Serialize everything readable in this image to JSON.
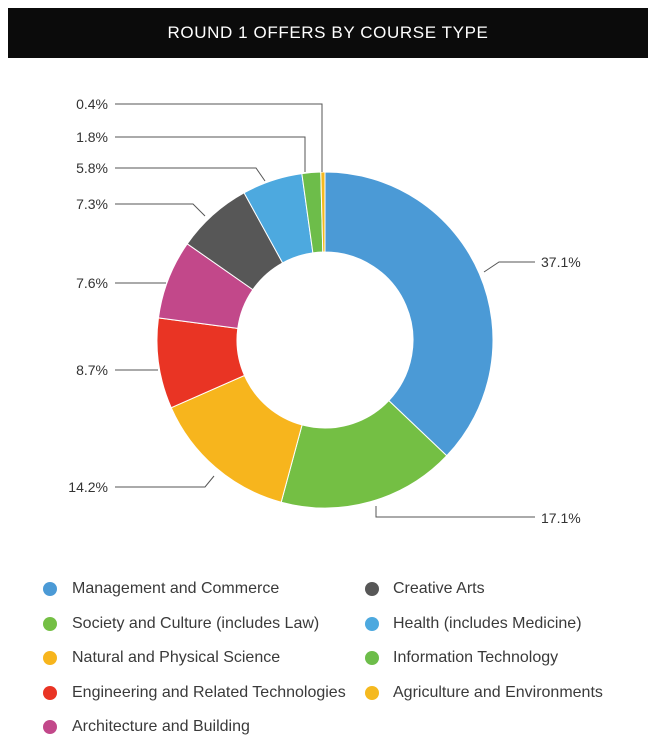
{
  "chart_data": {
    "type": "pie",
    "donut": true,
    "title": "ROUND 1 OFFERS BY COURSE TYPE",
    "categories": [
      "Management and Commerce",
      "Society and Culture (includes Law)",
      "Natural and Physical Science",
      "Engineering and Related Technologies",
      "Architecture and Building",
      "Creative Arts",
      "Health (includes Medicine)",
      "Information Technology",
      "Agriculture and Environments"
    ],
    "values": [
      37.1,
      17.1,
      14.2,
      8.7,
      7.6,
      7.3,
      5.8,
      1.8,
      0.4
    ],
    "data_labels": [
      "37.1%",
      "17.1%",
      "14.2%",
      "8.7%",
      "7.6%",
      "7.3%",
      "5.8%",
      "1.8%",
      "0.4%"
    ],
    "colors": [
      "#4b9ad6",
      "#74bf44",
      "#f7b51d",
      "#e93424",
      "#c2488a",
      "#575757",
      "#4da9df",
      "#6dbd4a",
      "#f5b91f"
    ],
    "legend": "bottom"
  }
}
